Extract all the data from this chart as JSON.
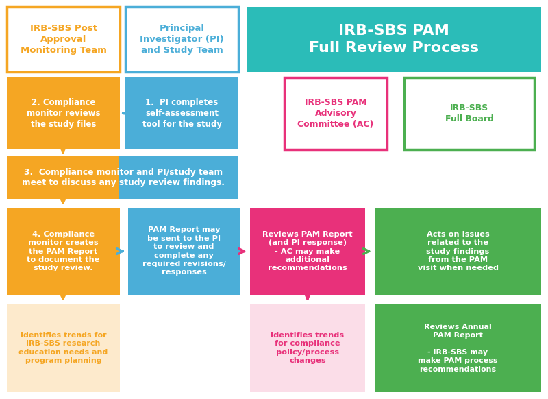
{
  "bg_color": "#ffffff",
  "teal": "#2BBCB8",
  "orange": "#F5A623",
  "blue": "#4BAED8",
  "pink": "#E8317A",
  "green": "#4CAF50",
  "light_pink_bg": "#FBDDE8",
  "light_orange_bg": "#FDEACC",
  "header_left_text": "IRB-SBS Post\nApproval\nMonitoring Team",
  "header_mid_text": "Principal\nInvestigator (PI)\nand Study Team",
  "header_right_text": "IRB-SBS PAM\nFull Review Process",
  "box1_text": "1.  PI completes\nself-assessment\ntool for the study",
  "box2_text": "2. Compliance\nmonitor reviews\nthe study files",
  "box3_text": "3.  Compliance monitor and PI/study team\nmeet to discuss any study review findings.",
  "box4_text": "4. Compliance\nmonitor creates\nthe PAM Report\nto document the\nstudy review.",
  "box5_text": "PAM Report may\nbe sent to the PI\nto review and\ncomplete any\nrequired revisions/\nresponses",
  "box6_text": "Reviews PAM Report\n(and PI response)\n- AC may make\nadditional\nrecommendations",
  "box7_text": "Acts on issues\nrelated to the\nstudy findings\nfrom the PAM\nvisit when needed",
  "box8_text": "Identifies trends for\nIRB-SBS research\neducation needs and\nprogram planning",
  "box8_bg": "#FDEACC",
  "box8_text_color": "#F5A623",
  "box9_text": "Identifies trends\nfor compliance\npolicy/process\nchanges",
  "box9_bg": "#FBDDE8",
  "box9_text_color": "#E8317A",
  "box10_text": "Reviews Annual\nPAM Report\n\n- IRB-SBS may\nmake PAM process\nrecommendations",
  "ac_text": "IRB-SBS PAM\nAdvisory\nCommittee (AC)",
  "ac_border": "#E8317A",
  "ac_text_color": "#E8317A",
  "fb_text": "IRB-SBS\nFull Board",
  "fb_border": "#4CAF50",
  "fb_text_color": "#4CAF50"
}
